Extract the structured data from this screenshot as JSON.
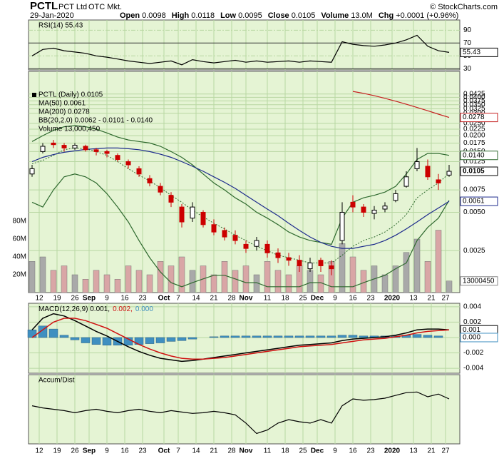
{
  "header": {
    "symbol": "PCTL",
    "name": "PCT Ltd",
    "exchange": "OTC Mkt.",
    "date": "29-Jan-2020",
    "copyright": "© StockCharts.com",
    "quote": [
      [
        "Open",
        "0.0098"
      ],
      [
        "High",
        "0.0118"
      ],
      [
        "Low",
        "0.0095"
      ],
      [
        "Close",
        "0.0105"
      ],
      [
        "Volume",
        "13.0M"
      ],
      [
        "Chg",
        "+0.0001 (+0.96%)"
      ]
    ]
  },
  "chart_data": [
    {
      "type": "line",
      "name": "RSI(14) 55.43",
      "color": "#000000",
      "x": [
        0,
        3,
        6,
        9,
        12,
        15,
        18,
        21,
        24,
        27,
        30,
        33,
        36,
        39,
        42,
        45,
        48,
        51,
        54,
        57,
        60,
        63,
        66,
        69,
        72,
        75,
        78,
        81,
        84,
        87,
        90,
        93,
        96,
        99,
        102,
        105,
        108,
        111,
        114,
        117
      ],
      "xlim": [
        -1,
        120
      ],
      "values": [
        50,
        60,
        62,
        58,
        56,
        54,
        50,
        48,
        45,
        42,
        40,
        38,
        40,
        42,
        36,
        44,
        41,
        39,
        41,
        43,
        40,
        42,
        40,
        41,
        42,
        40,
        42,
        41,
        40,
        72,
        68,
        66,
        65,
        67,
        70,
        75,
        82,
        65,
        58,
        55.43
      ],
      "ylim": [
        28,
        106
      ],
      "yticks": [
        30,
        50,
        70,
        90
      ],
      "overbought": 70,
      "oversold": 30,
      "last_box": {
        "value": 55.43,
        "label": "55.43"
      }
    },
    {
      "type": "candlestick",
      "name": "PCTL (Daily) 0.0105",
      "up_color": "#000000",
      "down_color": "#cc0000",
      "x": [
        0,
        3,
        6,
        9,
        12,
        15,
        18,
        21,
        24,
        27,
        30,
        33,
        36,
        39,
        42,
        45,
        48,
        51,
        54,
        57,
        60,
        63,
        66,
        69,
        72,
        75,
        78,
        81,
        84,
        87,
        90,
        93,
        96,
        99,
        102,
        105,
        108,
        111,
        114,
        117
      ],
      "xlim": [
        -1,
        120
      ],
      "xticks": [
        {
          "value": 2,
          "label": "12"
        },
        {
          "value": 7,
          "label": "19"
        },
        {
          "value": 12,
          "label": "26"
        },
        {
          "value": 16,
          "label": "Sep"
        },
        {
          "value": 21,
          "label": "9"
        },
        {
          "value": 26,
          "label": "16"
        },
        {
          "value": 31,
          "label": "23"
        },
        {
          "value": 37,
          "label": "Oct"
        },
        {
          "value": 41,
          "label": "7"
        },
        {
          "value": 46,
          "label": "14"
        },
        {
          "value": 51,
          "label": "21"
        },
        {
          "value": 56,
          "label": "28"
        },
        {
          "value": 60,
          "label": "Nov"
        },
        {
          "value": 66,
          "label": "11"
        },
        {
          "value": 71,
          "label": "18"
        },
        {
          "value": 76,
          "label": "25"
        },
        {
          "value": 80,
          "label": "Dec"
        },
        {
          "value": 85,
          "label": "9"
        },
        {
          "value": 90,
          "label": "16"
        },
        {
          "value": 95,
          "label": "23"
        },
        {
          "value": 101,
          "label": "2020"
        },
        {
          "value": 107,
          "label": "13"
        },
        {
          "value": 112,
          "label": "21"
        },
        {
          "value": 116,
          "label": "27"
        }
      ],
      "open": [
        0.01,
        0.015,
        0.0175,
        0.0168,
        0.016,
        0.0165,
        0.0155,
        0.015,
        0.014,
        0.0125,
        0.011,
        0.0092,
        0.008,
        0.0068,
        0.0055,
        0.0045,
        0.005,
        0.004,
        0.0036,
        0.0033,
        0.0028,
        0.0027,
        0.0028,
        0.0024,
        0.0022,
        0.0021,
        0.0018,
        0.0021,
        0.0019,
        0.003,
        0.006,
        0.0055,
        0.0049,
        0.0053,
        0.0062,
        0.008,
        0.011,
        0.0115,
        0.009,
        0.0098
      ],
      "high": [
        0.0118,
        0.0175,
        0.0185,
        0.0175,
        0.0175,
        0.017,
        0.016,
        0.0155,
        0.0145,
        0.013,
        0.0115,
        0.0098,
        0.0085,
        0.0072,
        0.0058,
        0.006,
        0.0052,
        0.0044,
        0.0038,
        0.0036,
        0.003,
        0.0032,
        0.003,
        0.0026,
        0.0024,
        0.0023,
        0.0022,
        0.0022,
        0.0021,
        0.006,
        0.0068,
        0.0058,
        0.0056,
        0.006,
        0.0075,
        0.0105,
        0.016,
        0.013,
        0.01,
        0.0118
      ],
      "low": [
        0.0095,
        0.0145,
        0.016,
        0.015,
        0.0155,
        0.015,
        0.014,
        0.0135,
        0.0125,
        0.011,
        0.0095,
        0.008,
        0.0068,
        0.0055,
        0.0038,
        0.0042,
        0.0038,
        0.0033,
        0.003,
        0.0028,
        0.0024,
        0.0025,
        0.0022,
        0.002,
        0.0019,
        0.0017,
        0.0017,
        0.0017,
        0.0016,
        0.0028,
        0.005,
        0.0046,
        0.0044,
        0.005,
        0.006,
        0.0078,
        0.0105,
        0.009,
        0.0075,
        0.0095
      ],
      "close": [
        0.011,
        0.0165,
        0.017,
        0.016,
        0.0168,
        0.0155,
        0.015,
        0.0145,
        0.013,
        0.0118,
        0.01,
        0.0085,
        0.0072,
        0.006,
        0.0042,
        0.0055,
        0.004,
        0.0035,
        0.0032,
        0.003,
        0.0026,
        0.003,
        0.0024,
        0.0022,
        0.0021,
        0.0019,
        0.002,
        0.0019,
        0.0018,
        0.005,
        0.0055,
        0.005,
        0.0052,
        0.0056,
        0.007,
        0.0095,
        0.0125,
        0.0095,
        0.0085,
        0.0105
      ],
      "log_scale": true,
      "ylim": [
        0.00117,
        0.064
      ],
      "yticks": [
        0.0425,
        {
          "value": 0.04,
          "label": "0.0400"
        },
        0.0375,
        {
          "value": 0.035,
          "label": "0.0350"
        },
        0.0325,
        {
          "value": 0.03,
          "label": "0.0300"
        },
        {
          "value": 0.025,
          "label": "0.0250"
        },
        0.0225,
        {
          "value": 0.02,
          "label": "0.0200"
        },
        0.0175,
        {
          "value": 0.015,
          "label": "0.0150"
        },
        0.0125,
        0.0075,
        {
          "value": 0.005,
          "label": "0.0050"
        },
        0.0025
      ],
      "overlays": [
        {
          "name": "MA(50) 0.0061",
          "color": "#1c2a8c",
          "values": [
            0.0125,
            0.0135,
            0.0142,
            0.0148,
            0.0152,
            0.0156,
            0.0158,
            0.016,
            0.016,
            0.0158,
            0.0155,
            0.015,
            0.0143,
            0.0135,
            0.0125,
            0.0115,
            0.0105,
            0.0095,
            0.0086,
            0.0077,
            0.0068,
            0.006,
            0.0053,
            0.0047,
            0.0041,
            0.0036,
            0.0032,
            0.0029,
            0.0027,
            0.0026,
            0.0026,
            0.0027,
            0.0028,
            0.003,
            0.0033,
            0.0037,
            0.0042,
            0.0048,
            0.0054,
            0.0061
          ]
        },
        {
          "name": "MA(200) 0.0278",
          "color": "#c62020",
          "values": [
            null,
            null,
            null,
            null,
            null,
            null,
            null,
            null,
            null,
            null,
            null,
            null,
            null,
            null,
            null,
            null,
            null,
            null,
            null,
            null,
            null,
            null,
            null,
            null,
            null,
            null,
            null,
            null,
            null,
            null,
            0.0445,
            0.043,
            0.0412,
            0.0393,
            0.0373,
            0.0353,
            0.0333,
            0.0314,
            0.0295,
            0.0278
          ]
        }
      ],
      "bands": {
        "name": "BB(20,2.0) 0.0062 - 0.0101 - 0.0140",
        "color": "#2f6a2f",
        "upper": [
          0.018,
          0.02,
          0.022,
          0.0235,
          0.024,
          0.0235,
          0.0225,
          0.021,
          0.0195,
          0.0185,
          0.018,
          0.0175,
          0.0165,
          0.015,
          0.0135,
          0.0118,
          0.01,
          0.0085,
          0.0075,
          0.0065,
          0.0058,
          0.005,
          0.0045,
          0.004,
          0.0035,
          0.0032,
          0.003,
          0.0029,
          0.0028,
          0.0045,
          0.006,
          0.0065,
          0.0068,
          0.0072,
          0.008,
          0.01,
          0.013,
          0.0145,
          0.0145,
          0.014
        ],
        "middle": [
          0.012,
          0.0128,
          0.014,
          0.0155,
          0.016,
          0.0158,
          0.015,
          0.014,
          0.0125,
          0.011,
          0.0098,
          0.0088,
          0.0078,
          0.0068,
          0.006,
          0.0052,
          0.0046,
          0.0041,
          0.0037,
          0.0033,
          0.003,
          0.0027,
          0.0025,
          0.0023,
          0.0022,
          0.0021,
          0.002,
          0.002,
          0.002,
          0.0023,
          0.0027,
          0.003,
          0.0032,
          0.0035,
          0.004,
          0.0048,
          0.0065,
          0.0075,
          0.0085,
          0.0101
        ],
        "lower": [
          0.006,
          0.0055,
          0.0075,
          0.0095,
          0.01,
          0.0095,
          0.0085,
          0.007,
          0.0055,
          0.0042,
          0.003,
          0.0022,
          0.0017,
          0.0014,
          0.0013,
          0.0014,
          0.0015,
          0.0016,
          0.0016,
          0.0015,
          0.0014,
          0.0014,
          0.0013,
          0.0013,
          0.0013,
          0.0013,
          0.0014,
          0.0014,
          0.0013,
          0.0013,
          0.0013,
          0.0014,
          0.0015,
          0.0016,
          0.0018,
          0.002,
          0.003,
          0.0038,
          0.0045,
          0.0062
        ]
      },
      "volume": {
        "name": "Volume 13,000,450",
        "up_color": "#a9a9a9",
        "down_color": "#d9a6a6",
        "values": [
          35000000,
          40000000,
          25000000,
          30000000,
          20000000,
          15000000,
          25000000,
          20000000,
          15000000,
          30000000,
          25000000,
          20000000,
          35000000,
          30000000,
          40000000,
          25000000,
          30000000,
          20000000,
          35000000,
          25000000,
          30000000,
          20000000,
          35000000,
          25000000,
          20000000,
          30000000,
          25000000,
          20000000,
          35000000,
          55000000,
          40000000,
          25000000,
          30000000,
          20000000,
          30000000,
          45000000,
          60000000,
          35000000,
          70000000,
          13000450
        ],
        "ylim": [
          0,
          248000000
        ],
        "yticks": [
          {
            "value": 20000000,
            "label": "20M"
          },
          {
            "value": 40000000,
            "label": "40M"
          },
          {
            "value": 60000000,
            "label": "60M"
          },
          {
            "value": 80000000,
            "label": "80M"
          }
        ],
        "last_box": {
          "value": 13000450,
          "label": "13000450"
        }
      },
      "last_boxes": [
        {
          "value": 0.0278,
          "label": "0.0278",
          "color": "#c62020"
        },
        {
          "value": 0.014,
          "label": "0.0140",
          "color": "#2f6a2f"
        },
        {
          "value": 0.0105,
          "label": "0.0105",
          "color": "#000000"
        },
        {
          "value": 0.0061,
          "label": "0.0061",
          "color": "#1c2a8c"
        }
      ]
    },
    {
      "type": "macd",
      "x": [
        0,
        3,
        6,
        9,
        12,
        15,
        18,
        21,
        24,
        27,
        30,
        33,
        36,
        39,
        42,
        45,
        48,
        51,
        54,
        57,
        60,
        63,
        66,
        69,
        72,
        75,
        78,
        81,
        84,
        87,
        90,
        93,
        96,
        99,
        102,
        105,
        108,
        111,
        114,
        117
      ],
      "xlim": [
        -1,
        120
      ],
      "series": [
        {
          "name": "MACD(12,26,9) 0.001,",
          "color": "#000000",
          "values": [
            0.001,
            0.0025,
            0.0031,
            0.0028,
            0.0022,
            0.0015,
            0.0008,
            0.0002,
            -0.0005,
            -0.0012,
            -0.0018,
            -0.0023,
            -0.0027,
            -0.0029,
            -0.0031,
            -0.003,
            -0.0028,
            -0.0026,
            -0.0024,
            -0.0022,
            -0.002,
            -0.0018,
            -0.0016,
            -0.0014,
            -0.0012,
            -0.001,
            -0.0009,
            -0.0008,
            -0.0007,
            -0.0004,
            -0.0002,
            -0.0001,
            0,
            0.0001,
            0.0003,
            0.0006,
            0.001,
            0.0011,
            0.0011,
            0.001
          ]
        },
        {
          "name": "0.002,",
          "color": "#d01010",
          "values": [
            0,
            0.001,
            0.002,
            0.0025,
            0.0025,
            0.0022,
            0.0017,
            0.0012,
            0.0005,
            -0.0002,
            -0.0009,
            -0.0015,
            -0.002,
            -0.0024,
            -0.0027,
            -0.0028,
            -0.0028,
            -0.0027,
            -0.0026,
            -0.0024,
            -0.0022,
            -0.002,
            -0.0018,
            -0.0016,
            -0.0014,
            -0.0012,
            -0.0011,
            -0.001,
            -0.0009,
            -0.0007,
            -0.0005,
            -0.0003,
            -0.0002,
            -0.0001,
            0.0001,
            0.0003,
            0.0006,
            0.0008,
            0.0009,
            0.001
          ]
        },
        {
          "name": "0.000",
          "color": "#3f8fc0",
          "bars": true,
          "values": [
            0.001,
            0.0015,
            0.0011,
            0.0003,
            -0.0003,
            -0.0007,
            -0.0009,
            -0.001,
            -0.001,
            -0.001,
            -0.0009,
            -0.0008,
            -0.0007,
            -0.0005,
            -0.0004,
            -0.0002,
            0,
            0.0001,
            0.0002,
            0.0002,
            0.0002,
            0.0002,
            0.0002,
            0.0002,
            0.0002,
            0.0002,
            0.0002,
            0.0002,
            0.0002,
            0.0003,
            0.0003,
            0.0002,
            0.0002,
            0.0002,
            0.0002,
            0.0003,
            0.0004,
            0.0003,
            0.0002,
            0
          ]
        }
      ],
      "ylim": [
        -0.00464,
        0.00445
      ],
      "yticks": [
        0.004,
        0.002,
        {
          "value": 0,
          "label": "0.000"
        },
        -0.002,
        -0.004
      ],
      "last_boxes": [
        {
          "value": 0.001,
          "label": "0.001",
          "color": "#000000"
        },
        {
          "value": 0,
          "label": "0.000",
          "color": "#3f8fc0"
        }
      ]
    },
    {
      "type": "line",
      "name": "Accum/Dist",
      "color": "#000000",
      "x": [
        0,
        3,
        6,
        9,
        12,
        15,
        18,
        21,
        24,
        27,
        30,
        33,
        36,
        39,
        42,
        45,
        48,
        51,
        54,
        57,
        60,
        63,
        66,
        69,
        72,
        75,
        78,
        81,
        84,
        87,
        90,
        93,
        96,
        99,
        102,
        105,
        108,
        111,
        114,
        117
      ],
      "xlim": [
        -1,
        120
      ],
      "values": [
        55,
        52,
        50,
        48,
        45,
        48,
        50,
        47,
        45,
        48,
        50,
        47,
        45,
        48,
        46,
        44,
        45,
        47,
        45,
        42,
        30,
        15,
        20,
        30,
        35,
        32,
        30,
        35,
        30,
        55,
        65,
        63,
        64,
        66,
        70,
        74,
        75,
        68,
        72,
        65
      ],
      "ylim": [
        0,
        100
      ]
    }
  ]
}
